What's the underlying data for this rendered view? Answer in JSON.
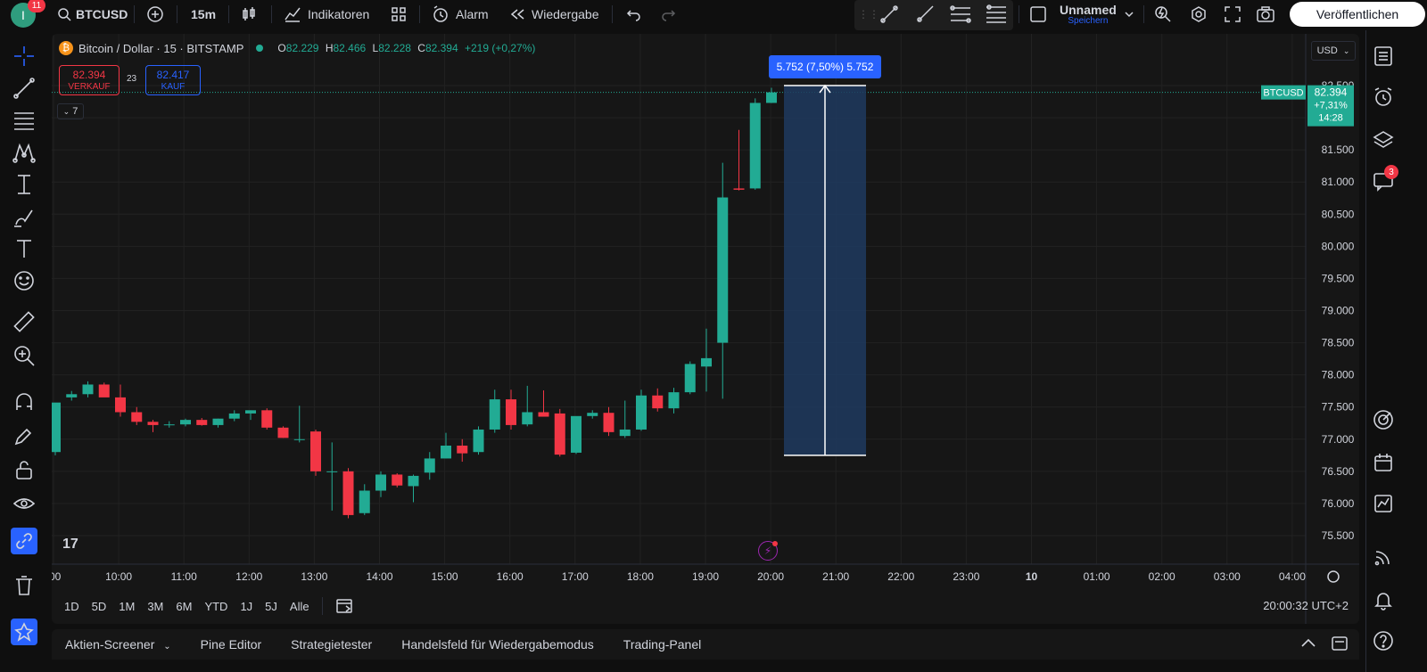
{
  "topbar": {
    "avatar_letter": "I",
    "avatar_badge": "11",
    "symbol": "BTCUSD",
    "interval": "15m",
    "indicators": "Indikatoren",
    "alarm": "Alarm",
    "replay": "Wiedergabe",
    "layout_name": "Unnamed",
    "layout_sub": "Speichern",
    "publish": "Veröffentlichen"
  },
  "legend": {
    "title": "Bitcoin / Dollar · 15 · BITSTAMP",
    "o_label": "O",
    "o_value": "82.229",
    "h_label": "H",
    "h_value": "82.466",
    "l_label": "L",
    "l_value": "82.228",
    "c_label": "C",
    "c_value": "82.394",
    "change": "+219 (+0,27%)"
  },
  "trade": {
    "sell_price": "82.394",
    "sell_label": "VERKAUF",
    "spread": "23",
    "buy_price": "82.417",
    "buy_label": "KAUF",
    "collapse_label": "7"
  },
  "currency": "USD",
  "price_tag": {
    "symbol": "BTCUSD",
    "price": "82.394",
    "change": "+7,31%",
    "countdown": "14:28"
  },
  "measure_label": "5.752 (7,50%) 5.752",
  "colors": {
    "up": "#22ab94",
    "down": "#f23645",
    "accent": "#2962ff",
    "measure": "#1e3a5f"
  },
  "ranges": [
    "1D",
    "5D",
    "1M",
    "3M",
    "6M",
    "YTD",
    "1J",
    "5J",
    "Alle"
  ],
  "clock": "20:00:32 UTC+2",
  "bottom_tabs": [
    "Aktien-Screener",
    "Pine Editor",
    "Strategietester",
    "Handelsfeld für Wiedergabemodus",
    "Trading-Panel"
  ],
  "right_badge": "3",
  "chart_data": {
    "type": "candlestick",
    "title": "Bitcoin / Dollar · 15 · BITSTAMP",
    "y_ticks": [
      "82.500",
      "82.000",
      "81.500",
      "81.000",
      "80.500",
      "80.000",
      "79.500",
      "79.000",
      "78.500",
      "78.000",
      "77.500",
      "77.000",
      "76.500",
      "76.000",
      "75.500"
    ],
    "x_ticks": [
      ":00",
      "10:00",
      "11:00",
      "12:00",
      "13:00",
      "14:00",
      "15:00",
      "16:00",
      "17:00",
      "18:00",
      "19:00",
      "20:00",
      "21:00",
      "22:00",
      "23:00",
      "10",
      "01:00",
      "02:00",
      "03:00",
      "04:00"
    ],
    "ylim": [
      75250,
      82800
    ],
    "candles": [
      [
        76800,
        77550,
        76750,
        77570
      ],
      [
        77650,
        77750,
        77600,
        77700
      ],
      [
        77700,
        77900,
        77650,
        77850
      ],
      [
        77850,
        77880,
        77680,
        77650
      ],
      [
        77650,
        77850,
        77350,
        77420
      ],
      [
        77420,
        77500,
        77220,
        77270
      ],
      [
        77270,
        77300,
        77110,
        77220
      ],
      [
        77220,
        77280,
        77180,
        77230
      ],
      [
        77230,
        77320,
        77200,
        77300
      ],
      [
        77300,
        77330,
        77210,
        77220
      ],
      [
        77220,
        77320,
        77180,
        77320
      ],
      [
        77320,
        77450,
        77280,
        77400
      ],
      [
        77400,
        77450,
        77300,
        77450
      ],
      [
        77450,
        77480,
        77150,
        77180
      ],
      [
        77180,
        77200,
        77020,
        77020
      ],
      [
        77000,
        77520,
        76950,
        77000
      ],
      [
        77120,
        77150,
        76430,
        76500
      ],
      [
        76500,
        76950,
        75890,
        76500
      ],
      [
        76500,
        76550,
        75770,
        75820
      ],
      [
        75850,
        76300,
        75820,
        76200
      ],
      [
        76200,
        76500,
        76100,
        76450
      ],
      [
        76450,
        76470,
        76250,
        76280
      ],
      [
        76270,
        76450,
        76020,
        76430
      ],
      [
        76480,
        76800,
        76370,
        76700
      ],
      [
        76700,
        77100,
        76700,
        76900
      ],
      [
        76900,
        77000,
        76650,
        76780
      ],
      [
        76800,
        77200,
        76760,
        77150
      ],
      [
        77150,
        77770,
        77100,
        77620
      ],
      [
        77620,
        77770,
        77150,
        77220
      ],
      [
        77230,
        77830,
        77200,
        77420
      ],
      [
        77420,
        77760,
        77350,
        77350
      ],
      [
        77400,
        77470,
        76730,
        76760
      ],
      [
        76790,
        77350,
        76770,
        77360
      ],
      [
        77360,
        77450,
        77320,
        77410
      ],
      [
        77410,
        77500,
        77050,
        77110
      ],
      [
        77050,
        77600,
        77020,
        77150
      ],
      [
        77150,
        77770,
        77130,
        77680
      ],
      [
        77680,
        77790,
        77430,
        77480
      ],
      [
        77480,
        77800,
        77400,
        77730
      ],
      [
        77730,
        78210,
        77700,
        78170
      ],
      [
        78130,
        78720,
        77740,
        78260
      ],
      [
        78500,
        81300,
        77630,
        80760
      ],
      [
        80900,
        81810,
        80870,
        80880
      ],
      [
        80900,
        82300,
        80880,
        82230
      ],
      [
        82230,
        82466,
        82228,
        82394
      ]
    ],
    "measure": {
      "from": 76750,
      "to": 82500,
      "label": "5.752 (7,50%) 5.752"
    }
  }
}
